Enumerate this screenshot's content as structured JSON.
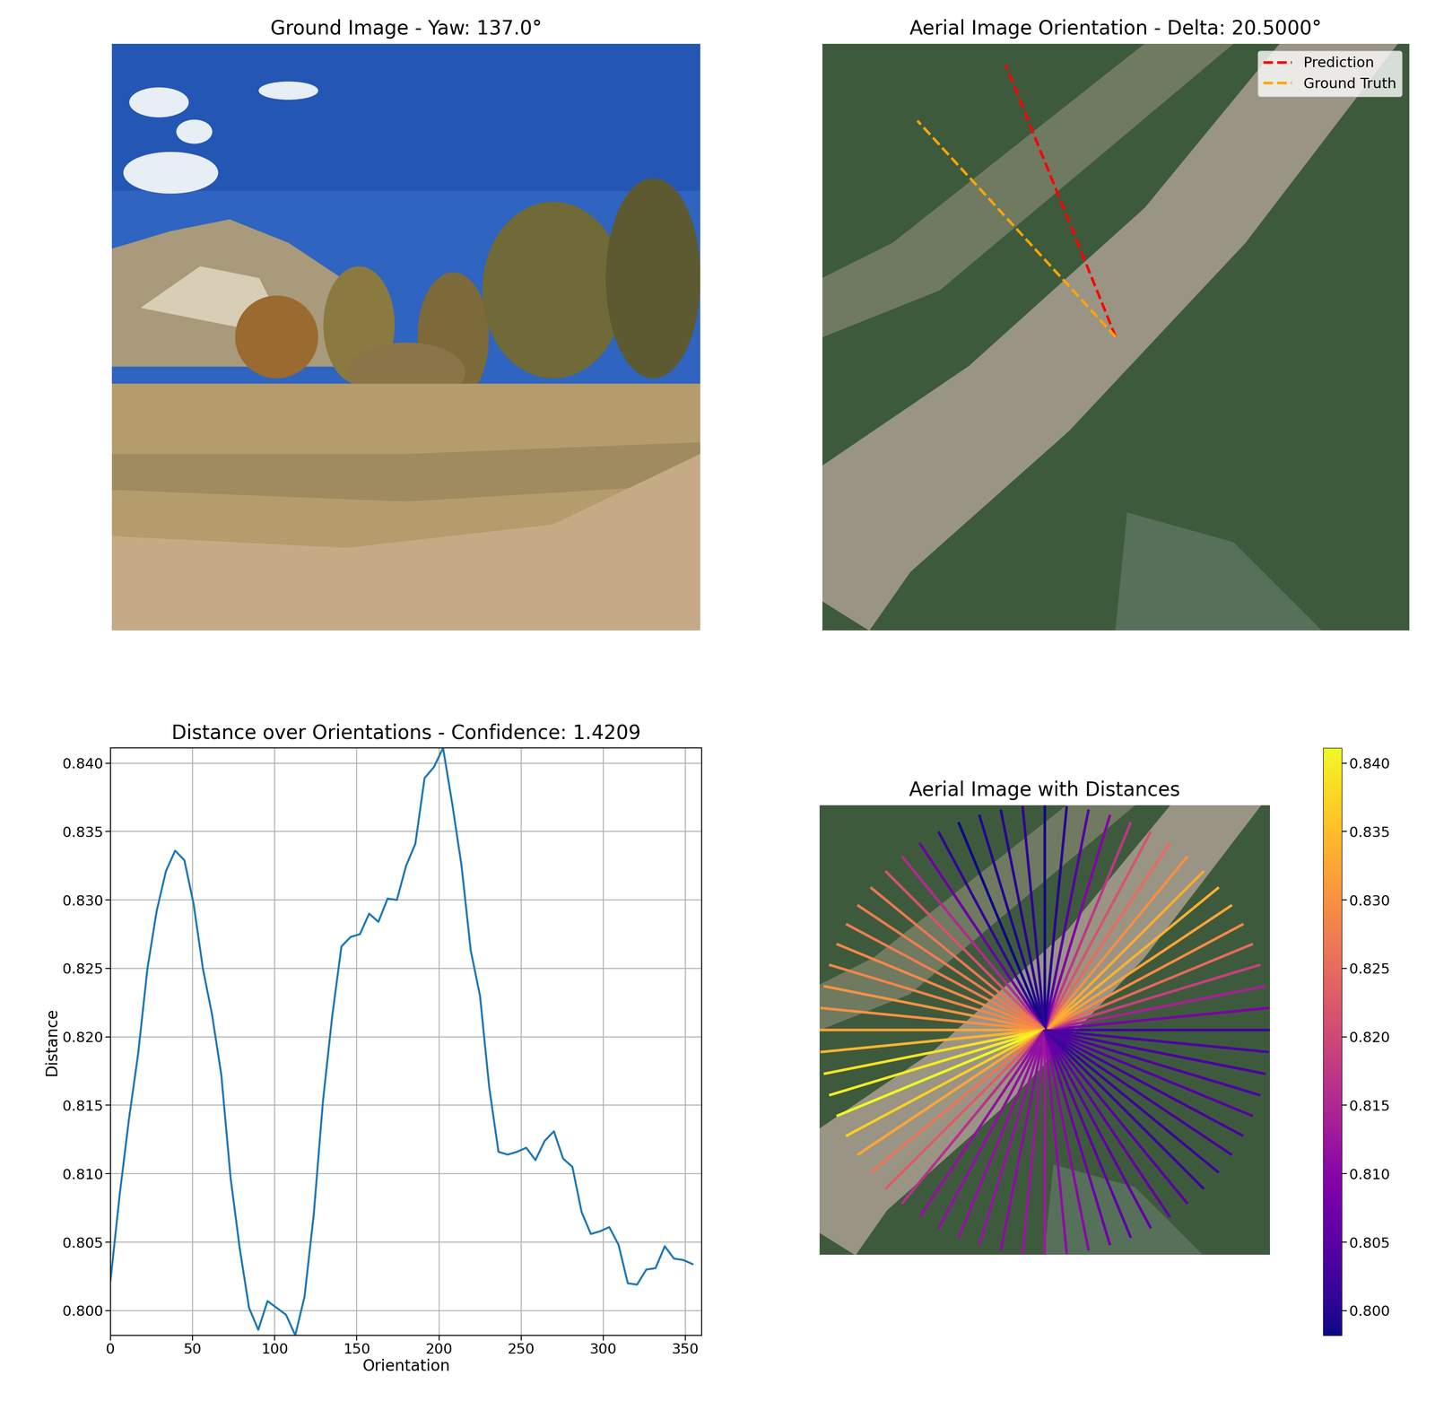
{
  "chart_data": [
    {
      "type": "image",
      "title": "Ground Image - Yaw: 137.0°"
    },
    {
      "type": "image",
      "title": "Aerial Image Orientation - Delta: 20.5000°",
      "legend": "upper right",
      "series": [
        {
          "name": "Prediction",
          "color": "red",
          "line_style": "dashed",
          "angle": 22.0
        },
        {
          "name": "Ground Truth",
          "color": "orange",
          "line_style": "dashed",
          "angle": 42.5
        }
      ]
    },
    {
      "type": "line",
      "title": "Distance over Orientations - Confidence: 1.4209",
      "x_label": "Orientation",
      "y_label": "Distance",
      "color": "#1f77b4",
      "grid": true,
      "x": [
        0,
        5.625,
        11.25,
        16.875,
        22.5,
        28.125,
        33.75,
        39.375,
        45,
        50.625,
        56.25,
        61.875,
        67.5,
        73.125,
        78.75,
        84.375,
        90,
        95.625,
        101.25,
        106.875,
        112.5,
        118.125,
        123.75,
        129.375,
        135,
        140.625,
        146.25,
        151.875,
        157.5,
        163.125,
        168.75,
        174.375,
        180,
        185.625,
        191.25,
        196.875,
        202.5,
        208.125,
        213.75,
        219.375,
        225,
        230.625,
        236.25,
        241.875,
        247.5,
        253.125,
        258.75,
        264.375,
        270,
        275.625,
        281.25,
        286.875,
        292.5,
        298.125,
        303.75,
        309.375,
        315,
        320.625,
        326.25,
        331.875,
        337.5,
        343.125,
        348.75,
        354.375
      ],
      "values": [
        0.8022,
        0.8085,
        0.814,
        0.8188,
        0.825,
        0.8292,
        0.8321,
        0.8336,
        0.8329,
        0.8297,
        0.825,
        0.8216,
        0.8172,
        0.8097,
        0.8045,
        0.8002,
        0.7986,
        0.8007,
        0.8002,
        0.7997,
        0.7982,
        0.801,
        0.807,
        0.8153,
        0.8215,
        0.8266,
        0.8273,
        0.8275,
        0.829,
        0.8284,
        0.8301,
        0.83,
        0.8325,
        0.8341,
        0.8389,
        0.8397,
        0.8411,
        0.837,
        0.8325,
        0.8263,
        0.823,
        0.8163,
        0.8116,
        0.8114,
        0.8116,
        0.8119,
        0.811,
        0.8124,
        0.8131,
        0.8111,
        0.8105,
        0.8072,
        0.8056,
        0.8058,
        0.8061,
        0.8048,
        0.802,
        0.8019,
        0.803,
        0.8031,
        0.8047,
        0.8038,
        0.8037,
        0.8034
      ],
      "xlim": [
        0,
        360
      ],
      "xticks": [
        0,
        50,
        100,
        150,
        200,
        250,
        300,
        350
      ],
      "ylim": [
        0.7982,
        0.8411
      ],
      "yticks": [
        {
          "value": 0.8,
          "label": "0.800"
        },
        {
          "value": 0.805,
          "label": "0.805"
        },
        {
          "value": 0.81,
          "label": "0.810"
        },
        {
          "value": 0.815,
          "label": "0.815"
        },
        {
          "value": 0.82,
          "label": "0.820"
        },
        {
          "value": 0.825,
          "label": "0.825"
        },
        {
          "value": 0.83,
          "label": "0.830"
        },
        {
          "value": 0.835,
          "label": "0.835"
        },
        {
          "value": 0.84,
          "label": "0.840"
        }
      ]
    },
    {
      "type": "radial",
      "title": "Aerial Image with Distances",
      "color": "plasma",
      "x": [
        0,
        5.625,
        11.25,
        16.875,
        22.5,
        28.125,
        33.75,
        39.375,
        45,
        50.625,
        56.25,
        61.875,
        67.5,
        73.125,
        78.75,
        84.375,
        90,
        95.625,
        101.25,
        106.875,
        112.5,
        118.125,
        123.75,
        129.375,
        135,
        140.625,
        146.25,
        151.875,
        157.5,
        163.125,
        168.75,
        174.375,
        180,
        185.625,
        191.25,
        196.875,
        202.5,
        208.125,
        213.75,
        219.375,
        225,
        230.625,
        236.25,
        241.875,
        247.5,
        253.125,
        258.75,
        264.375,
        270,
        275.625,
        281.25,
        286.875,
        292.5,
        298.125,
        303.75,
        309.375,
        315,
        320.625,
        326.25,
        331.875,
        337.5,
        343.125,
        348.75,
        354.375
      ],
      "values": [
        0.8022,
        0.8085,
        0.814,
        0.8188,
        0.825,
        0.8292,
        0.8321,
        0.8336,
        0.8329,
        0.8297,
        0.825,
        0.8216,
        0.8172,
        0.8097,
        0.8045,
        0.8002,
        0.7986,
        0.8007,
        0.8002,
        0.7997,
        0.7982,
        0.801,
        0.807,
        0.8153,
        0.8215,
        0.8266,
        0.8273,
        0.8275,
        0.829,
        0.8284,
        0.8301,
        0.83,
        0.8325,
        0.8341,
        0.8389,
        0.8397,
        0.8411,
        0.837,
        0.8325,
        0.8263,
        0.823,
        0.8163,
        0.8116,
        0.8114,
        0.8116,
        0.8119,
        0.811,
        0.8124,
        0.8131,
        0.8111,
        0.8105,
        0.8072,
        0.8056,
        0.8058,
        0.8061,
        0.8048,
        0.802,
        0.8019,
        0.803,
        0.8031,
        0.8047,
        0.8038,
        0.8037,
        0.8034
      ],
      "colorbar_range": [
        0.7982,
        0.8411
      ],
      "colorbar_ticks": [
        {
          "value": 0.8,
          "label": "0.800"
        },
        {
          "value": 0.805,
          "label": "0.805"
        },
        {
          "value": 0.81,
          "label": "0.810"
        },
        {
          "value": 0.815,
          "label": "0.815"
        },
        {
          "value": 0.82,
          "label": "0.820"
        },
        {
          "value": 0.825,
          "label": "0.825"
        },
        {
          "value": 0.83,
          "label": "0.830"
        },
        {
          "value": 0.835,
          "label": "0.835"
        },
        {
          "value": 0.84,
          "label": "0.840"
        }
      ]
    }
  ]
}
